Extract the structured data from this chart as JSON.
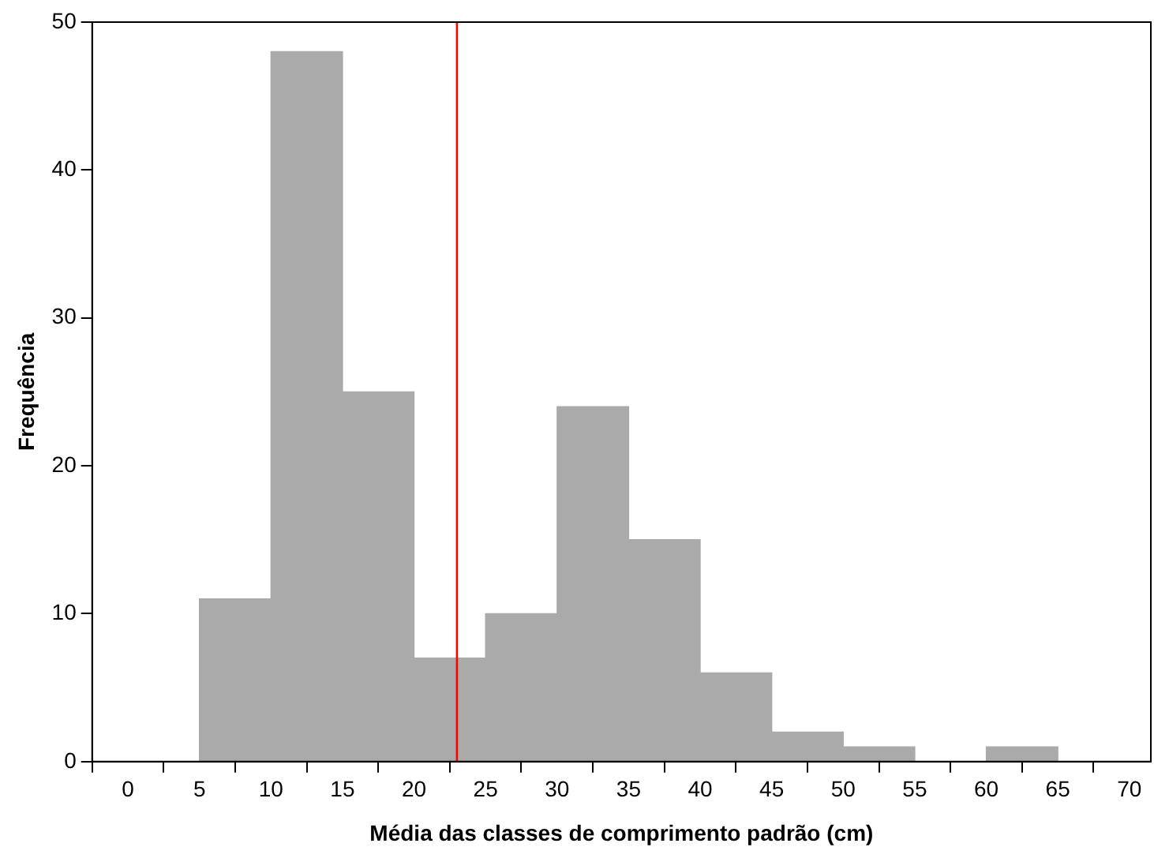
{
  "chart_data": {
    "type": "histogram",
    "xlabel": "Média das classes de comprimento padrão (cm)",
    "ylabel": "Frequência",
    "bins": [
      5,
      10,
      15,
      20,
      25,
      30,
      35,
      40,
      45,
      50,
      55,
      60,
      65
    ],
    "values": [
      11,
      48,
      25,
      7,
      10,
      24,
      15,
      6,
      2,
      1,
      0,
      1
    ],
    "color": "#aaaaaa",
    "xlim": [
      -2.5,
      71.5
    ],
    "xticks": [
      0,
      5,
      10,
      15,
      20,
      25,
      30,
      35,
      40,
      45,
      50,
      55,
      60,
      65,
      70
    ],
    "ylim": [
      0,
      50
    ],
    "yticks": [
      0,
      10,
      20,
      30,
      40,
      50
    ],
    "ref_lines": [
      {
        "axis": "x",
        "value": 23,
        "color": "#ff0000"
      }
    ],
    "grid": false,
    "legend": false
  }
}
